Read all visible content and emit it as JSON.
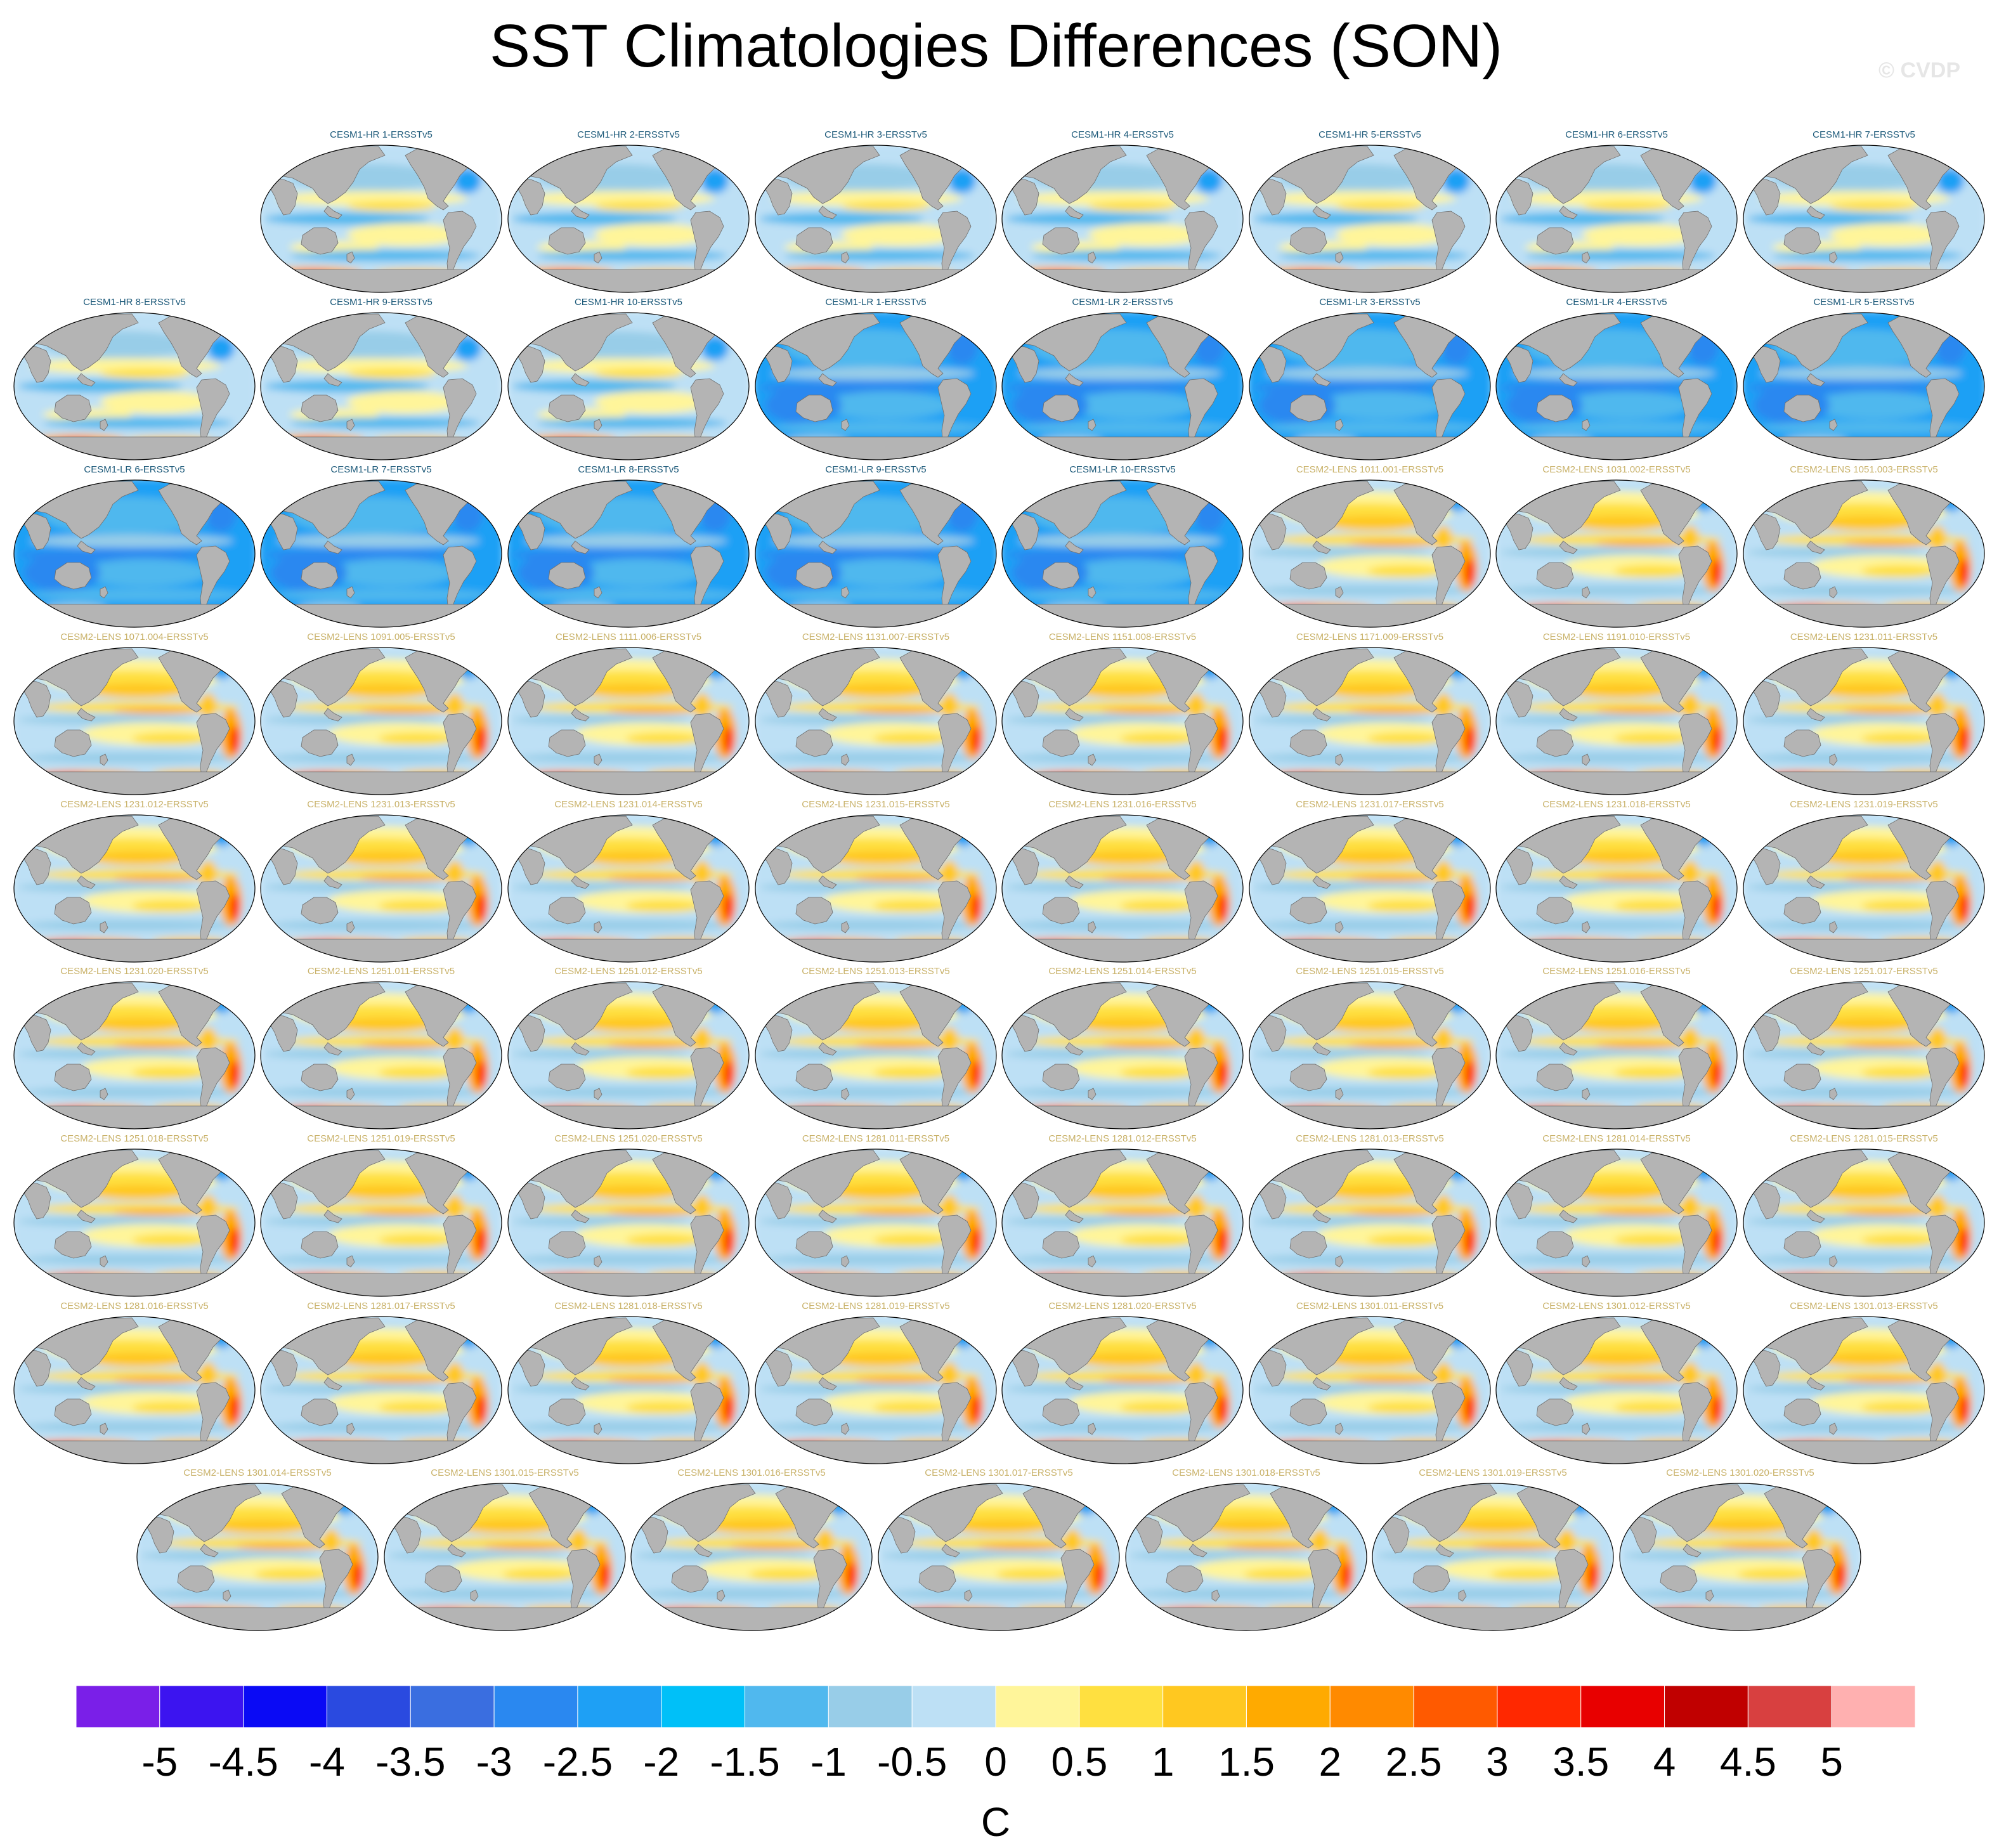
{
  "title": "SST Climatologies Differences (SON)",
  "watermark": "© CVDP",
  "panels": [
    "CESM1-HR 1-ERSSTv5",
    "CESM1-HR 2-ERSSTv5",
    "CESM1-HR 3-ERSSTv5",
    "CESM1-HR 4-ERSSTv5",
    "CESM1-HR 5-ERSSTv5",
    "CESM1-HR 6-ERSSTv5",
    "CESM1-HR 7-ERSSTv5",
    "CESM1-HR 8-ERSSTv5",
    "CESM1-HR 9-ERSSTv5",
    "CESM1-HR 10-ERSSTv5",
    "CESM1-LR 1-ERSSTv5",
    "CESM1-LR 2-ERSSTv5",
    "CESM1-LR 3-ERSSTv5",
    "CESM1-LR 4-ERSSTv5",
    "CESM1-LR 5-ERSSTv5",
    "CESM1-LR 6-ERSSTv5",
    "CESM1-LR 7-ERSSTv5",
    "CESM1-LR 8-ERSSTv5",
    "CESM1-LR 9-ERSSTv5",
    "CESM1-LR 10-ERSSTv5",
    "CESM2-LENS 1011.001-ERSSTv5",
    "CESM2-LENS 1031.002-ERSSTv5",
    "CESM2-LENS 1051.003-ERSSTv5",
    "CESM2-LENS 1071.004-ERSSTv5",
    "CESM2-LENS 1091.005-ERSSTv5",
    "CESM2-LENS 1111.006-ERSSTv5",
    "CESM2-LENS 1131.007-ERSSTv5",
    "CESM2-LENS 1151.008-ERSSTv5",
    "CESM2-LENS 1171.009-ERSSTv5",
    "CESM2-LENS 1191.010-ERSSTv5",
    "CESM2-LENS 1231.011-ERSSTv5",
    "CESM2-LENS 1231.012-ERSSTv5",
    "CESM2-LENS 1231.013-ERSSTv5",
    "CESM2-LENS 1231.014-ERSSTv5",
    "CESM2-LENS 1231.015-ERSSTv5",
    "CESM2-LENS 1231.016-ERSSTv5",
    "CESM2-LENS 1231.017-ERSSTv5",
    "CESM2-LENS 1231.018-ERSSTv5",
    "CESM2-LENS 1231.019-ERSSTv5",
    "CESM2-LENS 1231.020-ERSSTv5",
    "CESM2-LENS 1251.011-ERSSTv5",
    "CESM2-LENS 1251.012-ERSSTv5",
    "CESM2-LENS 1251.013-ERSSTv5",
    "CESM2-LENS 1251.014-ERSSTv5",
    "CESM2-LENS 1251.015-ERSSTv5",
    "CESM2-LENS 1251.016-ERSSTv5",
    "CESM2-LENS 1251.017-ERSSTv5",
    "CESM2-LENS 1251.018-ERSSTv5",
    "CESM2-LENS 1251.019-ERSSTv5",
    "CESM2-LENS 1251.020-ERSSTv5",
    "CESM2-LENS 1281.011-ERSSTv5",
    "CESM2-LENS 1281.012-ERSSTv5",
    "CESM2-LENS 1281.013-ERSSTv5",
    "CESM2-LENS 1281.014-ERSSTv5",
    "CESM2-LENS 1281.015-ERSSTv5",
    "CESM2-LENS 1281.016-ERSSTv5",
    "CESM2-LENS 1281.017-ERSSTv5",
    "CESM2-LENS 1281.018-ERSSTv5",
    "CESM2-LENS 1281.019-ERSSTv5",
    "CESM2-LENS 1281.020-ERSSTv5",
    "CESM2-LENS 1301.011-ERSSTv5",
    "CESM2-LENS 1301.012-ERSSTv5",
    "CESM2-LENS 1301.013-ERSSTv5",
    "CESM2-LENS 1301.014-ERSSTv5",
    "CESM2-LENS 1301.015-ERSSTv5",
    "CESM2-LENS 1301.016-ERSSTv5",
    "CESM2-LENS 1301.017-ERSSTv5",
    "CESM2-LENS 1301.018-ERSSTv5",
    "CESM2-LENS 1301.019-ERSSTv5",
    "CESM2-LENS 1301.020-ERSSTv5"
  ],
  "colorbar": {
    "unit": "C",
    "ticks": [
      "-5",
      "-4.5",
      "-4",
      "-3.5",
      "-3",
      "-2.5",
      "-2",
      "-1.5",
      "-1",
      "-0.5",
      "0",
      "0.5",
      "1",
      "1.5",
      "2",
      "2.5",
      "3",
      "3.5",
      "4",
      "4.5",
      "5"
    ],
    "colors": [
      "#7a1fe8",
      "#3c14f0",
      "#0a0af5",
      "#2a4ae0",
      "#3a6ee0",
      "#2a88f0",
      "#1ea0f5",
      "#00c0f8",
      "#50b8ee",
      "#98cde8",
      "#bde0f5",
      "#fff59a",
      "#ffe040",
      "#ffc820",
      "#ffaa00",
      "#ff8a00",
      "#ff5a00",
      "#ff2800",
      "#e80000",
      "#c00000",
      "#d84040",
      "#ffb0b0"
    ]
  },
  "colors": {
    "land": "#b4b4b4",
    "label_cesm1": "#1d5a7a",
    "label_cesm2": "#c9b26a"
  }
}
